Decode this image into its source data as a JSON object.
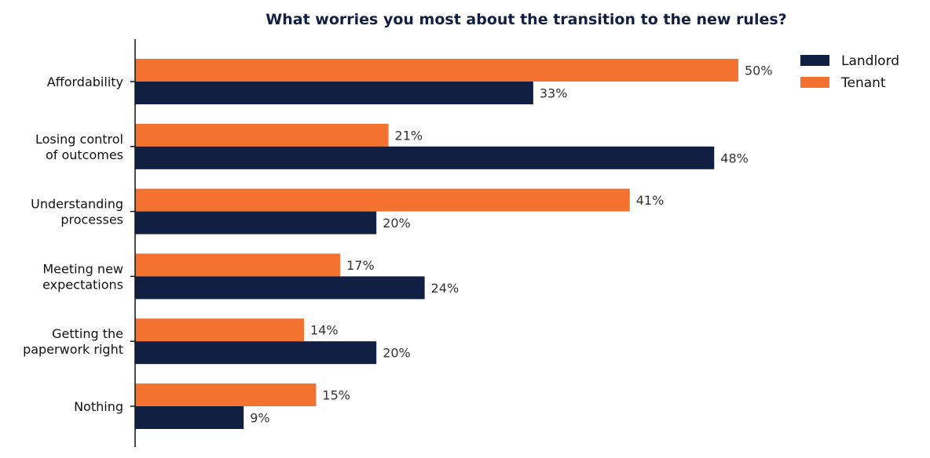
{
  "chart_data": {
    "type": "bar",
    "orientation": "horizontal",
    "title": "What worries you most about the transition to the new rules?",
    "xlabel": "",
    "ylabel": "",
    "categories": [
      [
        "Affordability"
      ],
      [
        "Losing control",
        "of outcomes"
      ],
      [
        "Understanding",
        "processes"
      ],
      [
        "Meeting new",
        "expectations"
      ],
      [
        "Getting the",
        "paperwork right"
      ],
      [
        "Nothing"
      ]
    ],
    "series": [
      {
        "name": "Tenant",
        "color": "#f37230",
        "values": [
          50,
          21,
          41,
          17,
          14,
          15
        ]
      },
      {
        "name": "Landlord",
        "color": "#111f42",
        "values": [
          33,
          48,
          20,
          24,
          20,
          9
        ]
      }
    ],
    "value_suffix": "%",
    "legend_order": [
      "Landlord",
      "Tenant"
    ],
    "legend_position": "top-right",
    "xlim": [
      0,
      57
    ],
    "grid": false,
    "colors": {
      "title": "#111f42",
      "axis": "#111111"
    }
  }
}
